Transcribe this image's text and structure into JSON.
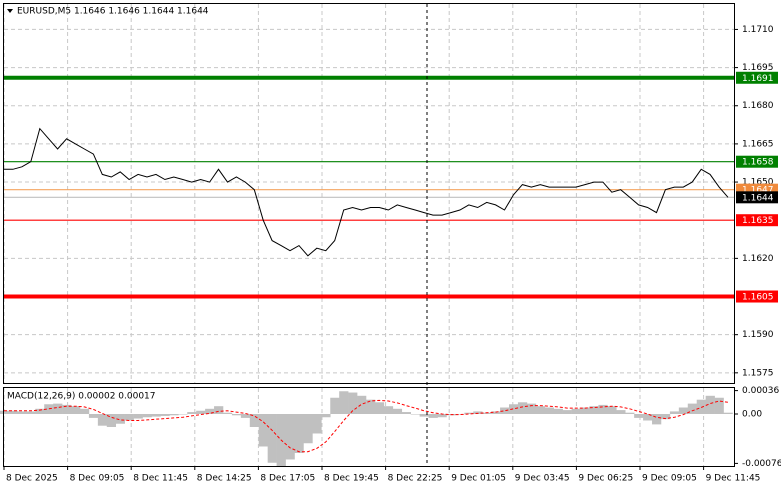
{
  "chart_data": [
    {
      "type": "line",
      "title": "EURUSD,M5 1.1646 1.1646 1.1644 1.1644",
      "color": "#000000",
      "values": [
        1.1655,
        1.1655,
        1.1656,
        1.1658,
        1.1671,
        1.1667,
        1.1663,
        1.1667,
        1.1665,
        1.1663,
        1.1661,
        1.1653,
        1.1652,
        1.1654,
        1.1651,
        1.1653,
        1.1652,
        1.1653,
        1.1651,
        1.1652,
        1.1651,
        1.165,
        1.1651,
        1.165,
        1.1655,
        1.165,
        1.1652,
        1.165,
        1.1647,
        1.1635,
        1.1627,
        1.1625,
        1.1623,
        1.1625,
        1.1621,
        1.1624,
        1.1623,
        1.1627,
        1.1639,
        1.164,
        1.1639,
        1.164,
        1.164,
        1.1639,
        1.1641,
        1.164,
        1.1639,
        1.1638,
        1.1637,
        1.1637,
        1.1638,
        1.1639,
        1.1641,
        1.164,
        1.1642,
        1.1641,
        1.1639,
        1.1645,
        1.1649,
        1.1648,
        1.1649,
        1.1648,
        1.1648,
        1.1648,
        1.1648,
        1.1649,
        1.165,
        1.165,
        1.1646,
        1.1647,
        1.1644,
        1.1641,
        1.164,
        1.1638,
        1.1647,
        1.1648,
        1.1648,
        1.165,
        1.1655,
        1.1653,
        1.1648,
        1.1644
      ],
      "ylim": [
        1.1571,
        1.172
      ],
      "yticks": [
        {
          "value": 1.171,
          "label": "1.1710"
        },
        1.1695,
        {
          "value": 1.168,
          "label": "1.1680"
        },
        1.1665,
        {
          "value": 1.165,
          "label": "1.1650"
        },
        {
          "value": 1.162,
          "label": "1.1620"
        },
        {
          "value": 1.159,
          "label": "1.1590"
        },
        1.1575
      ],
      "grid": true,
      "levels": [
        {
          "value": 1.1691,
          "color": "#008000",
          "tag_color": "#008000",
          "thick": true
        },
        {
          "value": 1.1658,
          "color": "#008000",
          "tag_color": "#008000",
          "thick": false
        },
        {
          "value": 1.1647,
          "color": "#f4a460",
          "tag_color": "#f08a3c",
          "thick": false
        },
        {
          "value": 1.1644,
          "color": "#c0c0c0",
          "tag_color": "#000000",
          "thick": false
        },
        {
          "value": 1.1635,
          "color": "#ff0000",
          "tag_color": "#ff0000",
          "thick": false
        },
        {
          "value": 1.1605,
          "color": "#ff0000",
          "tag_color": "#ff0000",
          "thick": true
        }
      ]
    },
    {
      "type": "macd",
      "title": "MACD(12,26,9) 0.00002 0.00017",
      "hist_color": "#c0c0c0",
      "signal_color": "#ff0000",
      "histogram": [
        5e-05,
        5e-05,
        4e-05,
        4e-05,
        8e-05,
        0.00015,
        0.00016,
        0.00014,
        0.00012,
        8e-05,
        -6e-05,
        -0.00018,
        -0.0002,
        -0.00015,
        -0.0001,
        -7e-05,
        -5e-05,
        -4e-05,
        -3e-05,
        -2e-05,
        0,
        3e-05,
        5e-05,
        8e-05,
        0.00012,
        2e-05,
        -2e-05,
        -6e-05,
        -0.0002,
        -0.0005,
        -0.00075,
        -0.0008,
        -0.0007,
        -0.0006,
        -0.00045,
        -0.0003,
        -5e-05,
        0.00025,
        0.00035,
        0.00033,
        0.00028,
        0.00022,
        0.00018,
        0.00012,
        8e-05,
        3e-05,
        0,
        -4e-05,
        -6e-05,
        -5e-05,
        -2e-05,
        0,
        2e-05,
        4e-05,
        2e-05,
        4e-05,
        0.0001,
        0.00015,
        0.00018,
        0.00016,
        0.00012,
        0.0001,
        8e-05,
        6e-05,
        8e-05,
        0.0001,
        0.00012,
        0.00014,
        0.00012,
        6e-05,
        2e-05,
        -6e-05,
        -0.0001,
        -0.00016,
        -8e-05,
        4e-05,
        0.0001,
        0.00016,
        0.00022,
        0.00028,
        0.00025,
        2e-05
      ],
      "signal": [
        5e-05,
        5e-05,
        5e-05,
        5e-05,
        6e-05,
        8e-05,
        0.0001,
        0.00012,
        0.00012,
        0.00011,
        7e-05,
        1e-05,
        -5e-05,
        -9e-05,
        -0.0001,
        -0.0001,
        -9e-05,
        -8e-05,
        -7e-05,
        -6e-05,
        -5e-05,
        -3e-05,
        -1e-05,
        1e-05,
        4e-05,
        5e-05,
        3e-05,
        1e-05,
        -3e-05,
        -0.00012,
        -0.00025,
        -0.0004,
        -0.00052,
        -0.00058,
        -0.00058,
        -0.00053,
        -0.00043,
        -0.00027,
        -0.0001,
        5e-05,
        0.00015,
        0.0002,
        0.00021,
        0.0002,
        0.00017,
        0.00013,
        9e-05,
        5e-05,
        2e-05,
        0,
        -1e-05,
        -1e-05,
        0,
        1e-05,
        2e-05,
        3e-05,
        5e-05,
        8e-05,
        0.00011,
        0.00013,
        0.00013,
        0.00012,
        0.00011,
        9e-05,
        9e-05,
        9e-05,
        0.0001,
        0.00011,
        0.00012,
        0.00011,
        8e-05,
        4e-05,
        0,
        -5e-05,
        -7e-05,
        -5e-05,
        -1e-05,
        5e-05,
        0.0001,
        0.00016,
        0.0002,
        0.00018
      ],
      "ylim": [
        -0.0008,
        0.0004
      ],
      "yticks": [
        0.00036,
        {
          "value": 0,
          "label": "0.00"
        },
        -0.00076
      ],
      "x_labels": [
        "8 Dec 2025",
        "8 Dec 09:05",
        "8 Dec 11:45",
        "8 Dec 14:25",
        "8 Dec 17:05",
        "8 Dec 19:45",
        "8 Dec 22:25",
        "9 Dec 01:05",
        "9 Dec 03:45",
        "9 Dec 06:25",
        "9 Dec 09:05",
        "9 Dec 11:45"
      ]
    }
  ]
}
